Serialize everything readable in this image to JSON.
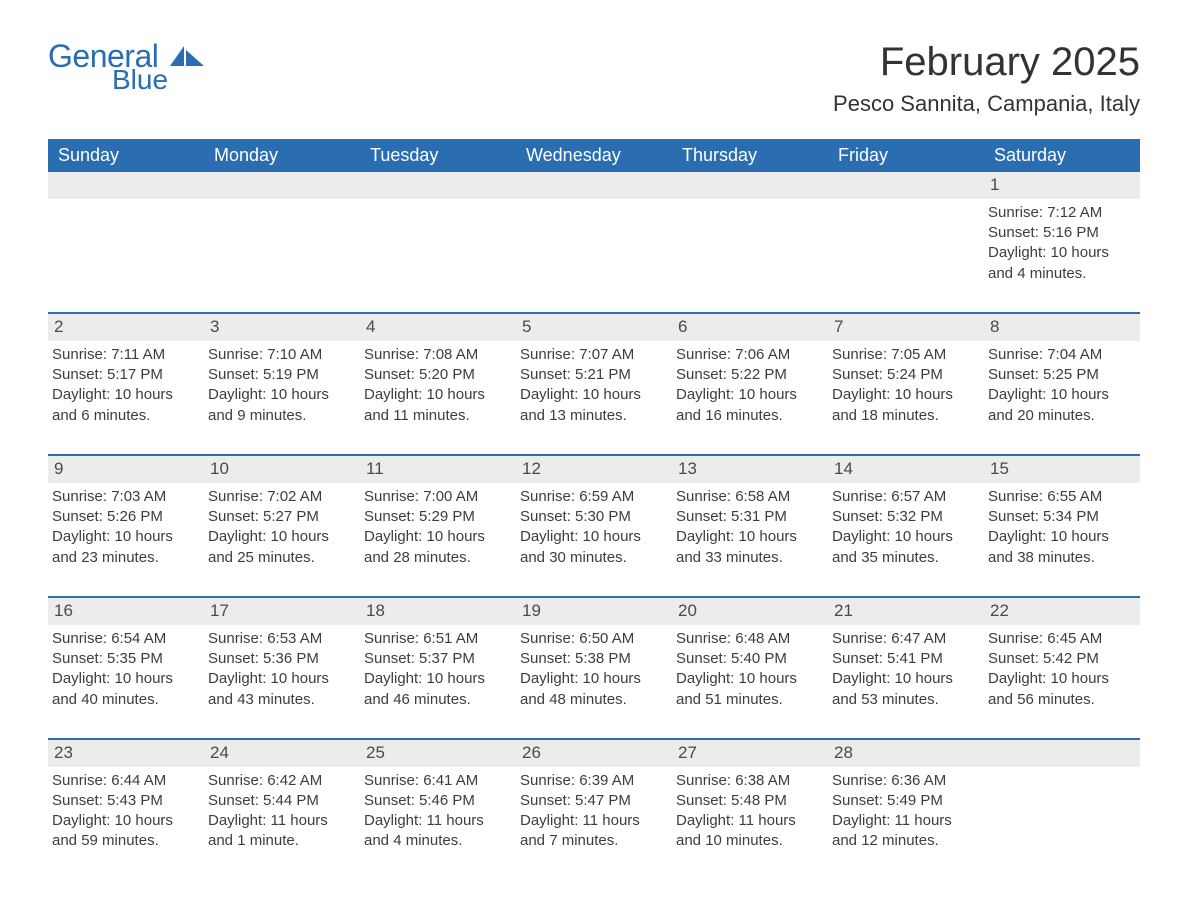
{
  "logo": {
    "word1": "General",
    "word2": "Blue"
  },
  "title": "February 2025",
  "location": "Pesco Sannita, Campania, Italy",
  "weekdays": [
    "Sunday",
    "Monday",
    "Tuesday",
    "Wednesday",
    "Thursday",
    "Friday",
    "Saturday"
  ],
  "colors": {
    "header_bg": "#2a6db0",
    "header_text": "#ffffff",
    "daynum_bg": "#ececec",
    "border_top": "#2a6db0",
    "body_text": "#3d3d3d",
    "title_text": "#333333",
    "logo_text": "#2a6db0"
  },
  "weeks": [
    [
      null,
      null,
      null,
      null,
      null,
      null,
      {
        "day": "1",
        "sunrise": "Sunrise: 7:12 AM",
        "sunset": "Sunset: 5:16 PM",
        "daylight": "Daylight: 10 hours and 4 minutes."
      }
    ],
    [
      {
        "day": "2",
        "sunrise": "Sunrise: 7:11 AM",
        "sunset": "Sunset: 5:17 PM",
        "daylight": "Daylight: 10 hours and 6 minutes."
      },
      {
        "day": "3",
        "sunrise": "Sunrise: 7:10 AM",
        "sunset": "Sunset: 5:19 PM",
        "daylight": "Daylight: 10 hours and 9 minutes."
      },
      {
        "day": "4",
        "sunrise": "Sunrise: 7:08 AM",
        "sunset": "Sunset: 5:20 PM",
        "daylight": "Daylight: 10 hours and 11 minutes."
      },
      {
        "day": "5",
        "sunrise": "Sunrise: 7:07 AM",
        "sunset": "Sunset: 5:21 PM",
        "daylight": "Daylight: 10 hours and 13 minutes."
      },
      {
        "day": "6",
        "sunrise": "Sunrise: 7:06 AM",
        "sunset": "Sunset: 5:22 PM",
        "daylight": "Daylight: 10 hours and 16 minutes."
      },
      {
        "day": "7",
        "sunrise": "Sunrise: 7:05 AM",
        "sunset": "Sunset: 5:24 PM",
        "daylight": "Daylight: 10 hours and 18 minutes."
      },
      {
        "day": "8",
        "sunrise": "Sunrise: 7:04 AM",
        "sunset": "Sunset: 5:25 PM",
        "daylight": "Daylight: 10 hours and 20 minutes."
      }
    ],
    [
      {
        "day": "9",
        "sunrise": "Sunrise: 7:03 AM",
        "sunset": "Sunset: 5:26 PM",
        "daylight": "Daylight: 10 hours and 23 minutes."
      },
      {
        "day": "10",
        "sunrise": "Sunrise: 7:02 AM",
        "sunset": "Sunset: 5:27 PM",
        "daylight": "Daylight: 10 hours and 25 minutes."
      },
      {
        "day": "11",
        "sunrise": "Sunrise: 7:00 AM",
        "sunset": "Sunset: 5:29 PM",
        "daylight": "Daylight: 10 hours and 28 minutes."
      },
      {
        "day": "12",
        "sunrise": "Sunrise: 6:59 AM",
        "sunset": "Sunset: 5:30 PM",
        "daylight": "Daylight: 10 hours and 30 minutes."
      },
      {
        "day": "13",
        "sunrise": "Sunrise: 6:58 AM",
        "sunset": "Sunset: 5:31 PM",
        "daylight": "Daylight: 10 hours and 33 minutes."
      },
      {
        "day": "14",
        "sunrise": "Sunrise: 6:57 AM",
        "sunset": "Sunset: 5:32 PM",
        "daylight": "Daylight: 10 hours and 35 minutes."
      },
      {
        "day": "15",
        "sunrise": "Sunrise: 6:55 AM",
        "sunset": "Sunset: 5:34 PM",
        "daylight": "Daylight: 10 hours and 38 minutes."
      }
    ],
    [
      {
        "day": "16",
        "sunrise": "Sunrise: 6:54 AM",
        "sunset": "Sunset: 5:35 PM",
        "daylight": "Daylight: 10 hours and 40 minutes."
      },
      {
        "day": "17",
        "sunrise": "Sunrise: 6:53 AM",
        "sunset": "Sunset: 5:36 PM",
        "daylight": "Daylight: 10 hours and 43 minutes."
      },
      {
        "day": "18",
        "sunrise": "Sunrise: 6:51 AM",
        "sunset": "Sunset: 5:37 PM",
        "daylight": "Daylight: 10 hours and 46 minutes."
      },
      {
        "day": "19",
        "sunrise": "Sunrise: 6:50 AM",
        "sunset": "Sunset: 5:38 PM",
        "daylight": "Daylight: 10 hours and 48 minutes."
      },
      {
        "day": "20",
        "sunrise": "Sunrise: 6:48 AM",
        "sunset": "Sunset: 5:40 PM",
        "daylight": "Daylight: 10 hours and 51 minutes."
      },
      {
        "day": "21",
        "sunrise": "Sunrise: 6:47 AM",
        "sunset": "Sunset: 5:41 PM",
        "daylight": "Daylight: 10 hours and 53 minutes."
      },
      {
        "day": "22",
        "sunrise": "Sunrise: 6:45 AM",
        "sunset": "Sunset: 5:42 PM",
        "daylight": "Daylight: 10 hours and 56 minutes."
      }
    ],
    [
      {
        "day": "23",
        "sunrise": "Sunrise: 6:44 AM",
        "sunset": "Sunset: 5:43 PM",
        "daylight": "Daylight: 10 hours and 59 minutes."
      },
      {
        "day": "24",
        "sunrise": "Sunrise: 6:42 AM",
        "sunset": "Sunset: 5:44 PM",
        "daylight": "Daylight: 11 hours and 1 minute."
      },
      {
        "day": "25",
        "sunrise": "Sunrise: 6:41 AM",
        "sunset": "Sunset: 5:46 PM",
        "daylight": "Daylight: 11 hours and 4 minutes."
      },
      {
        "day": "26",
        "sunrise": "Sunrise: 6:39 AM",
        "sunset": "Sunset: 5:47 PM",
        "daylight": "Daylight: 11 hours and 7 minutes."
      },
      {
        "day": "27",
        "sunrise": "Sunrise: 6:38 AM",
        "sunset": "Sunset: 5:48 PM",
        "daylight": "Daylight: 11 hours and 10 minutes."
      },
      {
        "day": "28",
        "sunrise": "Sunrise: 6:36 AM",
        "sunset": "Sunset: 5:49 PM",
        "daylight": "Daylight: 11 hours and 12 minutes."
      },
      null
    ]
  ]
}
